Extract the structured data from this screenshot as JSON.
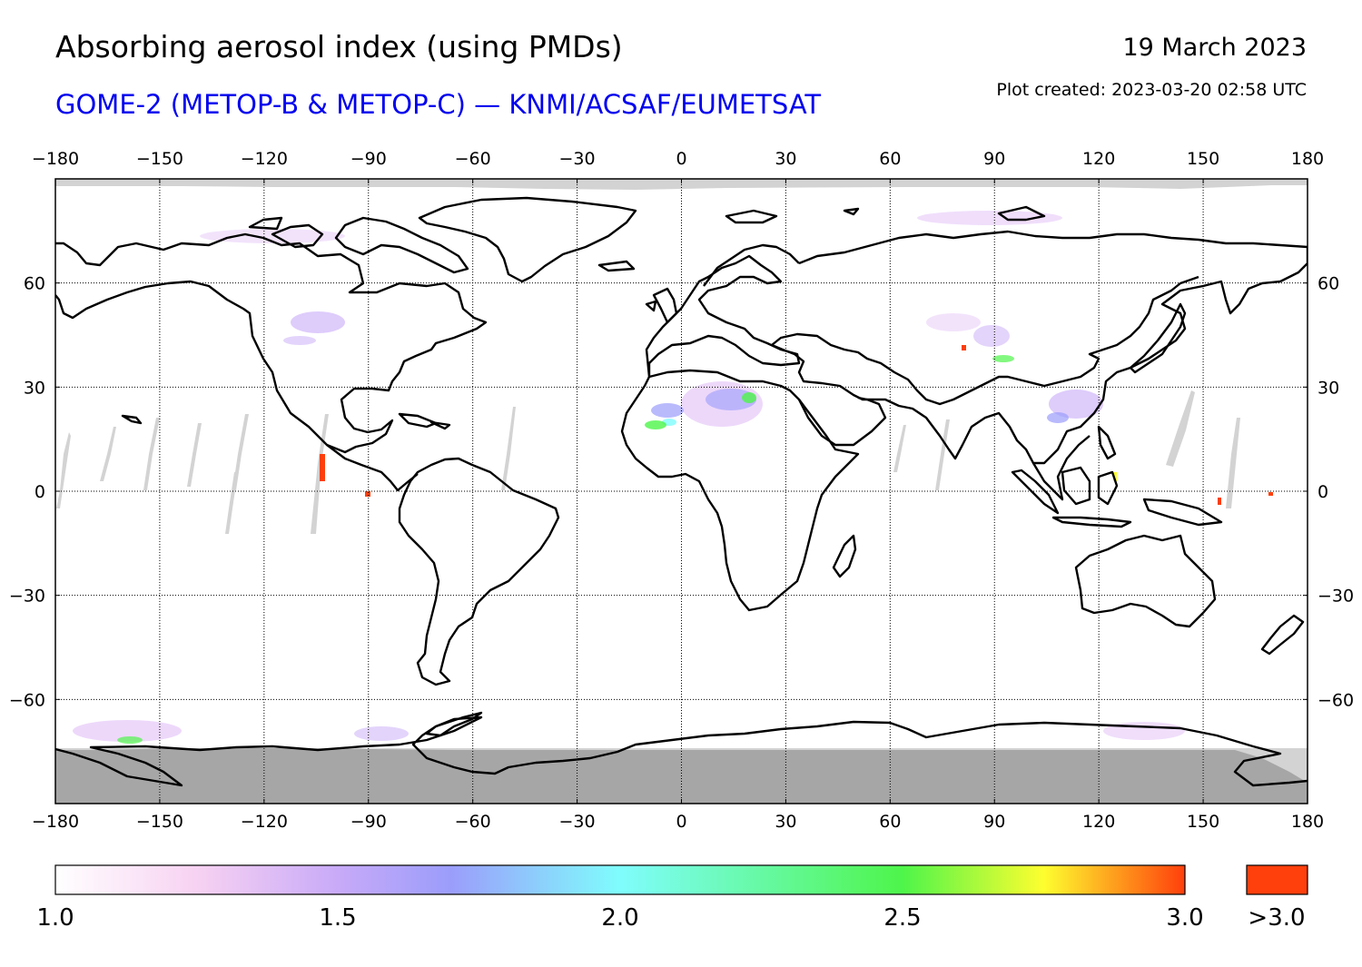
{
  "header": {
    "title": "Absorbing aerosol index (using PMDs)",
    "subtitle": "GOME-2 (METOP-B & METOP-C) — KNMI/ACSAF/EUMETSAT",
    "subtitle_color": "#0000ee",
    "date": "19 March 2023",
    "created": "Plot created: 2023-03-20 02:58 UTC"
  },
  "map": {
    "projection": "equirectangular",
    "lon_range": [
      -180,
      180
    ],
    "lat_range": [
      -90,
      90
    ],
    "lon_ticks": [
      -180,
      -150,
      -120,
      -90,
      -60,
      -30,
      0,
      30,
      60,
      90,
      120,
      150,
      180
    ],
    "lon_tick_labels": [
      "−180",
      "−150",
      "−120",
      "−90",
      "−60",
      "−30",
      "0",
      "30",
      "60",
      "90",
      "120",
      "150",
      "180"
    ],
    "lat_ticks": [
      60,
      30,
      0,
      -30,
      -60
    ],
    "lat_tick_labels": [
      "60",
      "30",
      "0",
      "−30",
      "−60"
    ],
    "gridlines": "dotted",
    "no_data_color": "#d3d3d3",
    "polar_night_color": "#a6a6a6",
    "coastline_color": "#000000"
  },
  "colorbar": {
    "min": 1.0,
    "max": 3.0,
    "tick_values": [
      1.0,
      1.5,
      2.0,
      2.5,
      3.0
    ],
    "tick_labels": [
      "1.0",
      "1.5",
      "2.0",
      "2.5",
      "3.0"
    ],
    "stops": [
      {
        "value": 1.0,
        "color": "#ffffff"
      },
      {
        "value": 1.25,
        "color": "#f7d2f2"
      },
      {
        "value": 1.5,
        "color": "#c8aaf8"
      },
      {
        "value": 1.7,
        "color": "#9b9dfb"
      },
      {
        "value": 2.0,
        "color": "#7ffdfd"
      },
      {
        "value": 2.5,
        "color": "#4ef54a"
      },
      {
        "value": 2.75,
        "color": "#fefe2f"
      },
      {
        "value": 3.0,
        "color": "#ff3f0c"
      }
    ],
    "overflow_label": ">3.0",
    "overflow_color": "#ff3f0c"
  }
}
